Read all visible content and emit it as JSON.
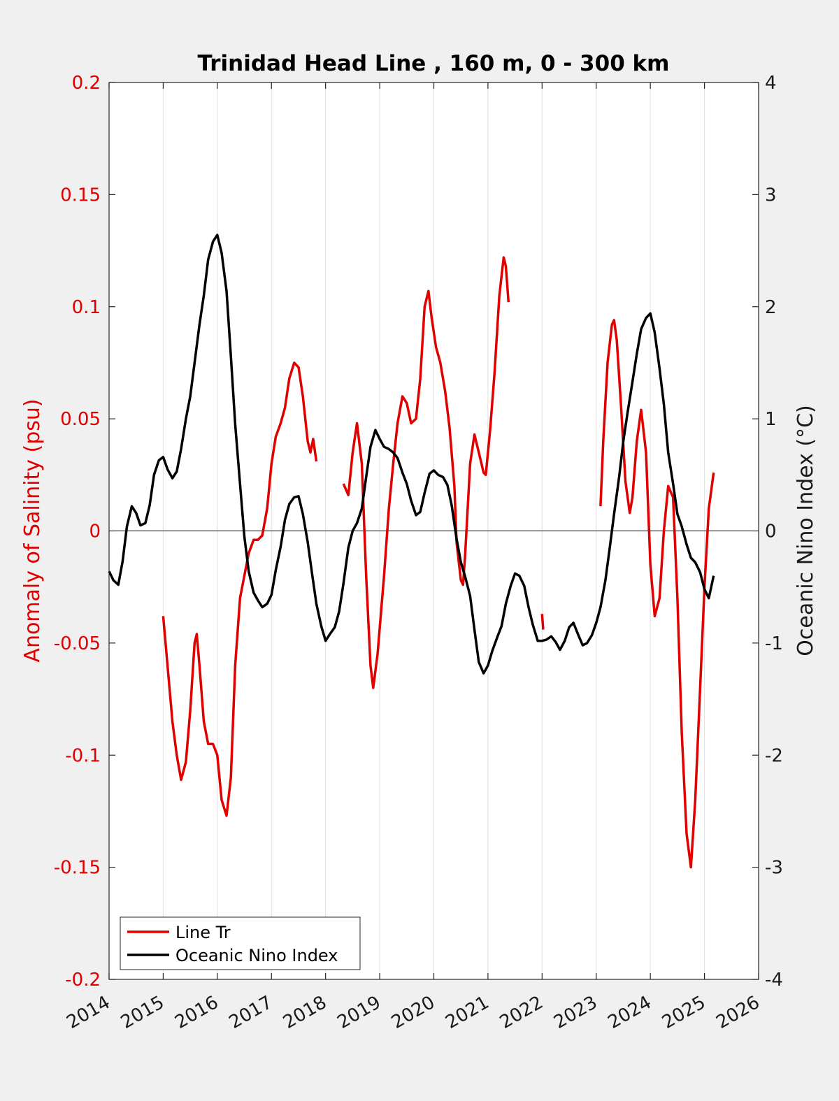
{
  "chart_data": {
    "type": "line",
    "title": "Trinidad Head Line , 160 m, 0 - 300 km",
    "xlabel": "",
    "ylabel_left": "Anomaly of Salinity (psu)",
    "ylabel_right": "Oceanic Nino Index (°C)",
    "xlim": [
      2014,
      2026
    ],
    "ylim_left": [
      -0.2,
      0.2
    ],
    "ylim_right": [
      -4,
      4
    ],
    "x_ticks": [
      "2014",
      "2015",
      "2016",
      "2017",
      "2018",
      "2019",
      "2020",
      "2021",
      "2022",
      "2023",
      "2024",
      "2025",
      "2026"
    ],
    "y_ticks_left": [
      "0.2",
      "0.15",
      "0.1",
      "0.05",
      "0",
      "-0.05",
      "-0.1",
      "-0.15",
      "-0.2"
    ],
    "y_ticks_right": [
      "4",
      "3",
      "2",
      "1",
      "0",
      "-1",
      "-2",
      "-3",
      "-4"
    ],
    "grid": "vertical",
    "zero_line": 0,
    "legend_position": "bottom-left",
    "colors": {
      "salinity": "#e00000",
      "oni": "#000000",
      "left_axis": "#e00000"
    },
    "series": [
      {
        "name": "Line Tr",
        "axis": "left",
        "segments": [
          [
            [
              2015.0,
              -0.038
            ],
            [
              2015.08,
              -0.06
            ],
            [
              2015.17,
              -0.085
            ],
            [
              2015.25,
              -0.1
            ],
            [
              2015.33,
              -0.111
            ],
            [
              2015.42,
              -0.103
            ],
            [
              2015.5,
              -0.08
            ],
            [
              2015.58,
              -0.05
            ],
            [
              2015.62,
              -0.046
            ],
            [
              2015.67,
              -0.06
            ],
            [
              2015.75,
              -0.085
            ],
            [
              2015.83,
              -0.095
            ],
            [
              2015.92,
              -0.095
            ],
            [
              2016.0,
              -0.1
            ],
            [
              2016.08,
              -0.12
            ],
            [
              2016.17,
              -0.127
            ],
            [
              2016.25,
              -0.11
            ],
            [
              2016.33,
              -0.06
            ],
            [
              2016.42,
              -0.03
            ],
            [
              2016.5,
              -0.02
            ],
            [
              2016.58,
              -0.01
            ],
            [
              2016.67,
              -0.004
            ],
            [
              2016.75,
              -0.004
            ],
            [
              2016.83,
              -0.002
            ],
            [
              2016.92,
              0.01
            ],
            [
              2017.0,
              0.03
            ],
            [
              2017.08,
              0.042
            ],
            [
              2017.17,
              0.048
            ],
            [
              2017.25,
              0.055
            ],
            [
              2017.33,
              0.068
            ],
            [
              2017.42,
              0.075
            ],
            [
              2017.5,
              0.073
            ],
            [
              2017.58,
              0.06
            ],
            [
              2017.67,
              0.04
            ],
            [
              2017.72,
              0.035
            ],
            [
              2017.77,
              0.041
            ],
            [
              2017.83,
              0.031
            ]
          ],
          [
            [
              2018.33,
              0.021
            ],
            [
              2018.42,
              0.016
            ],
            [
              2018.5,
              0.035
            ],
            [
              2018.58,
              0.048
            ],
            [
              2018.67,
              0.03
            ],
            [
              2018.75,
              -0.02
            ],
            [
              2018.83,
              -0.06
            ],
            [
              2018.88,
              -0.07
            ],
            [
              2018.96,
              -0.055
            ],
            [
              2019.08,
              -0.02
            ],
            [
              2019.17,
              0.01
            ],
            [
              2019.25,
              0.03
            ],
            [
              2019.33,
              0.048
            ],
            [
              2019.42,
              0.06
            ],
            [
              2019.5,
              0.057
            ],
            [
              2019.58,
              0.048
            ],
            [
              2019.67,
              0.05
            ],
            [
              2019.75,
              0.068
            ],
            [
              2019.83,
              0.1
            ],
            [
              2019.9,
              0.107
            ],
            [
              2019.96,
              0.095
            ],
            [
              2020.04,
              0.082
            ],
            [
              2020.12,
              0.075
            ],
            [
              2020.21,
              0.062
            ],
            [
              2020.29,
              0.046
            ],
            [
              2020.38,
              0.02
            ],
            [
              2020.42,
              -0.005
            ],
            [
              2020.5,
              -0.022
            ],
            [
              2020.54,
              -0.024
            ],
            [
              2020.58,
              -0.01
            ],
            [
              2020.67,
              0.03
            ],
            [
              2020.75,
              0.043
            ],
            [
              2020.83,
              0.035
            ],
            [
              2020.92,
              0.026
            ],
            [
              2020.96,
              0.025
            ],
            [
              2021.04,
              0.045
            ],
            [
              2021.12,
              0.07
            ],
            [
              2021.21,
              0.105
            ],
            [
              2021.29,
              0.122
            ],
            [
              2021.33,
              0.118
            ],
            [
              2021.38,
              0.102
            ]
          ],
          [
            [
              2022.0,
              -0.037
            ],
            [
              2022.02,
              -0.044
            ]
          ],
          [
            [
              2023.08,
              0.011
            ],
            [
              2023.13,
              0.04
            ],
            [
              2023.21,
              0.075
            ],
            [
              2023.29,
              0.092
            ],
            [
              2023.33,
              0.094
            ],
            [
              2023.38,
              0.085
            ],
            [
              2023.46,
              0.055
            ],
            [
              2023.54,
              0.022
            ],
            [
              2023.62,
              0.008
            ],
            [
              2023.67,
              0.015
            ],
            [
              2023.75,
              0.04
            ],
            [
              2023.83,
              0.054
            ],
            [
              2023.92,
              0.035
            ],
            [
              2024.0,
              -0.015
            ],
            [
              2024.08,
              -0.038
            ],
            [
              2024.17,
              -0.03
            ],
            [
              2024.25,
              0.0
            ],
            [
              2024.33,
              0.02
            ],
            [
              2024.42,
              0.015
            ],
            [
              2024.5,
              -0.03
            ],
            [
              2024.58,
              -0.09
            ],
            [
              2024.67,
              -0.135
            ],
            [
              2024.75,
              -0.15
            ],
            [
              2024.83,
              -0.12
            ],
            [
              2024.92,
              -0.07
            ],
            [
              2025.0,
              -0.025
            ],
            [
              2025.08,
              0.01
            ],
            [
              2025.17,
              0.026
            ]
          ]
        ]
      },
      {
        "name": "Oceanic Nino Index",
        "axis": "right",
        "segments": [
          [
            [
              2014.0,
              -0.36
            ],
            [
              2014.08,
              -0.44
            ],
            [
              2014.17,
              -0.48
            ],
            [
              2014.25,
              -0.27
            ],
            [
              2014.33,
              0.04
            ],
            [
              2014.42,
              0.22
            ],
            [
              2014.5,
              0.16
            ],
            [
              2014.58,
              0.05
            ],
            [
              2014.67,
              0.07
            ],
            [
              2014.75,
              0.23
            ],
            [
              2014.83,
              0.5
            ],
            [
              2014.92,
              0.63
            ],
            [
              2015.0,
              0.66
            ],
            [
              2015.08,
              0.55
            ],
            [
              2015.17,
              0.47
            ],
            [
              2015.25,
              0.53
            ],
            [
              2015.33,
              0.73
            ],
            [
              2015.42,
              1.0
            ],
            [
              2015.5,
              1.2
            ],
            [
              2015.58,
              1.5
            ],
            [
              2015.67,
              1.84
            ],
            [
              2015.75,
              2.1
            ],
            [
              2015.83,
              2.42
            ],
            [
              2015.92,
              2.58
            ],
            [
              2016.0,
              2.64
            ],
            [
              2016.08,
              2.48
            ],
            [
              2016.17,
              2.14
            ],
            [
              2016.25,
              1.56
            ],
            [
              2016.33,
              0.95
            ],
            [
              2016.42,
              0.42
            ],
            [
              2016.5,
              -0.05
            ],
            [
              2016.58,
              -0.36
            ],
            [
              2016.67,
              -0.55
            ],
            [
              2016.75,
              -0.62
            ],
            [
              2016.83,
              -0.68
            ],
            [
              2016.92,
              -0.65
            ],
            [
              2017.0,
              -0.57
            ],
            [
              2017.08,
              -0.35
            ],
            [
              2017.17,
              -0.14
            ],
            [
              2017.25,
              0.1
            ],
            [
              2017.33,
              0.24
            ],
            [
              2017.42,
              0.3
            ],
            [
              2017.5,
              0.31
            ],
            [
              2017.58,
              0.15
            ],
            [
              2017.67,
              -0.1
            ],
            [
              2017.75,
              -0.38
            ],
            [
              2017.83,
              -0.65
            ],
            [
              2017.92,
              -0.85
            ],
            [
              2018.0,
              -0.98
            ],
            [
              2018.08,
              -0.92
            ],
            [
              2018.17,
              -0.86
            ],
            [
              2018.25,
              -0.72
            ],
            [
              2018.33,
              -0.47
            ],
            [
              2018.42,
              -0.15
            ],
            [
              2018.5,
              0.0
            ],
            [
              2018.58,
              0.07
            ],
            [
              2018.67,
              0.2
            ],
            [
              2018.75,
              0.48
            ],
            [
              2018.83,
              0.75
            ],
            [
              2018.92,
              0.9
            ],
            [
              2019.0,
              0.82
            ],
            [
              2019.08,
              0.75
            ],
            [
              2019.17,
              0.73
            ],
            [
              2019.25,
              0.7
            ],
            [
              2019.33,
              0.65
            ],
            [
              2019.42,
              0.52
            ],
            [
              2019.5,
              0.42
            ],
            [
              2019.58,
              0.27
            ],
            [
              2019.67,
              0.14
            ],
            [
              2019.75,
              0.17
            ],
            [
              2019.83,
              0.34
            ],
            [
              2019.92,
              0.51
            ],
            [
              2020.0,
              0.54
            ],
            [
              2020.08,
              0.5
            ],
            [
              2020.17,
              0.48
            ],
            [
              2020.25,
              0.41
            ],
            [
              2020.33,
              0.23
            ],
            [
              2020.42,
              -0.07
            ],
            [
              2020.5,
              -0.28
            ],
            [
              2020.58,
              -0.41
            ],
            [
              2020.67,
              -0.58
            ],
            [
              2020.75,
              -0.88
            ],
            [
              2020.83,
              -1.17
            ],
            [
              2020.92,
              -1.27
            ],
            [
              2021.0,
              -1.2
            ],
            [
              2021.08,
              -1.07
            ],
            [
              2021.17,
              -0.95
            ],
            [
              2021.25,
              -0.85
            ],
            [
              2021.33,
              -0.65
            ],
            [
              2021.42,
              -0.49
            ],
            [
              2021.5,
              -0.38
            ],
            [
              2021.58,
              -0.4
            ],
            [
              2021.67,
              -0.49
            ],
            [
              2021.75,
              -0.68
            ],
            [
              2021.83,
              -0.84
            ],
            [
              2021.92,
              -0.98
            ],
            [
              2022.0,
              -0.98
            ],
            [
              2022.08,
              -0.97
            ],
            [
              2022.17,
              -0.94
            ],
            [
              2022.25,
              -0.99
            ],
            [
              2022.33,
              -1.06
            ],
            [
              2022.42,
              -0.98
            ],
            [
              2022.5,
              -0.86
            ],
            [
              2022.58,
              -0.82
            ],
            [
              2022.67,
              -0.93
            ],
            [
              2022.75,
              -1.02
            ],
            [
              2022.83,
              -1.0
            ],
            [
              2022.92,
              -0.93
            ],
            [
              2023.0,
              -0.82
            ],
            [
              2023.08,
              -0.68
            ],
            [
              2023.17,
              -0.44
            ],
            [
              2023.25,
              -0.15
            ],
            [
              2023.33,
              0.15
            ],
            [
              2023.42,
              0.47
            ],
            [
              2023.5,
              0.8
            ],
            [
              2023.58,
              1.06
            ],
            [
              2023.67,
              1.33
            ],
            [
              2023.75,
              1.58
            ],
            [
              2023.83,
              1.8
            ],
            [
              2023.92,
              1.9
            ],
            [
              2024.0,
              1.94
            ],
            [
              2024.08,
              1.77
            ],
            [
              2024.17,
              1.45
            ],
            [
              2024.25,
              1.13
            ],
            [
              2024.33,
              0.7
            ],
            [
              2024.42,
              0.42
            ],
            [
              2024.5,
              0.15
            ],
            [
              2024.58,
              0.04
            ],
            [
              2024.67,
              -0.12
            ],
            [
              2024.75,
              -0.24
            ],
            [
              2024.83,
              -0.28
            ],
            [
              2024.92,
              -0.37
            ],
            [
              2025.0,
              -0.52
            ],
            [
              2025.08,
              -0.6
            ],
            [
              2025.17,
              -0.4
            ]
          ]
        ]
      }
    ]
  }
}
